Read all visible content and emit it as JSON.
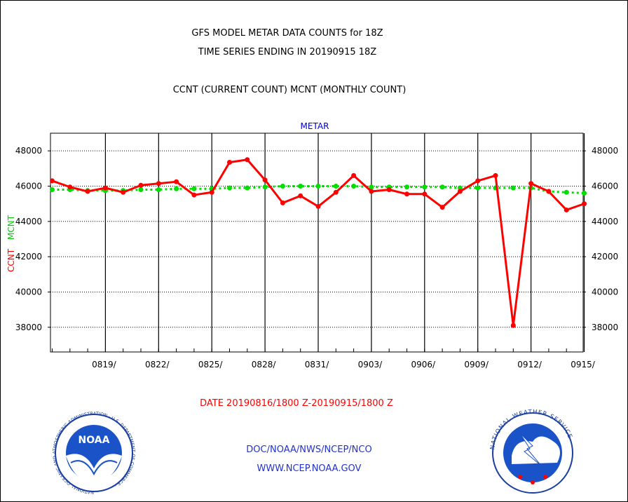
{
  "header": {
    "title_line1": "GFS MODEL METAR DATA COUNTS for 18Z",
    "title_line2": "TIME SERIES ENDING IN 20190915 18Z",
    "legend_line": "CCNT (CURRENT COUNT) MCNT (MONTHLY COUNT)",
    "panel_label": "METAR"
  },
  "footer": {
    "date_range": "DATE 20190816/1800 Z-20190915/1800 Z",
    "org_line": "DOC/NOAA/NWS/NCEP/NCO",
    "url_line": "WWW.NCEP.NOAA.GOV",
    "noaa_logo_text": "NOAA",
    "noaa_ring_text": "NATIONAL OCEANIC AND ATMOSPHERIC ADMINISTRATION · U.S. DEPARTMENT OF COMMERCE ·",
    "nws_ring_text": "NATIONAL WEATHER SERVICE"
  },
  "chart_data": {
    "type": "line",
    "title": "GFS MODEL METAR DATA COUNTS for 18Z",
    "subtitle": "TIME SERIES ENDING IN 20190915 18Z",
    "xlabel": "DATE 20190816/1800 Z-20190915/1800 Z",
    "ylabel_series": [
      "CCNT",
      "MCNT"
    ],
    "ylim": [
      36600,
      49000
    ],
    "yticks": [
      38000,
      40000,
      42000,
      44000,
      46000,
      48000
    ],
    "ytick_labels": [
      "38000",
      "40000",
      "42000",
      "44000",
      "46000",
      "48000"
    ],
    "x": [
      "2019-08-16",
      "2019-08-17",
      "2019-08-18",
      "2019-08-19",
      "2019-08-20",
      "2019-08-21",
      "2019-08-22",
      "2019-08-23",
      "2019-08-24",
      "2019-08-25",
      "2019-08-26",
      "2019-08-27",
      "2019-08-28",
      "2019-08-29",
      "2019-08-30",
      "2019-08-31",
      "2019-09-01",
      "2019-09-02",
      "2019-09-03",
      "2019-09-04",
      "2019-09-05",
      "2019-09-06",
      "2019-09-07",
      "2019-09-08",
      "2019-09-09",
      "2019-09-10",
      "2019-09-11",
      "2019-09-12",
      "2019-09-13",
      "2019-09-14",
      "2019-09-15"
    ],
    "xtick_labels": [
      "0819/",
      "0822/",
      "0825/",
      "0828/",
      "0831/",
      "0903/",
      "0906/",
      "0909/",
      "0912/",
      "0915/"
    ],
    "xtick_dates": [
      "2019-08-19",
      "2019-08-22",
      "2019-08-25",
      "2019-08-28",
      "2019-08-31",
      "2019-09-03",
      "2019-09-06",
      "2019-09-09",
      "2019-09-12",
      "2019-09-15"
    ],
    "grid": true,
    "series": [
      {
        "name": "CCNT",
        "color": "#ff0000",
        "values": [
          46300,
          45950,
          45700,
          45900,
          45650,
          46050,
          46150,
          46250,
          45500,
          45650,
          47350,
          47500,
          46350,
          45050,
          45450,
          44850,
          45650,
          46600,
          45700,
          45800,
          45550,
          45550,
          44800,
          45700,
          46300,
          46600,
          38100,
          46150,
          45700,
          44650,
          45000
        ]
      },
      {
        "name": "MCNT",
        "color": "#00dd00",
        "values": [
          45800,
          45800,
          45750,
          45750,
          45750,
          45800,
          45800,
          45850,
          45850,
          45850,
          45900,
          45900,
          45950,
          46000,
          46000,
          46000,
          46000,
          46000,
          45950,
          45950,
          45950,
          45950,
          45950,
          45900,
          45900,
          45900,
          45900,
          45900,
          45700,
          45650,
          45600
        ]
      }
    ]
  }
}
